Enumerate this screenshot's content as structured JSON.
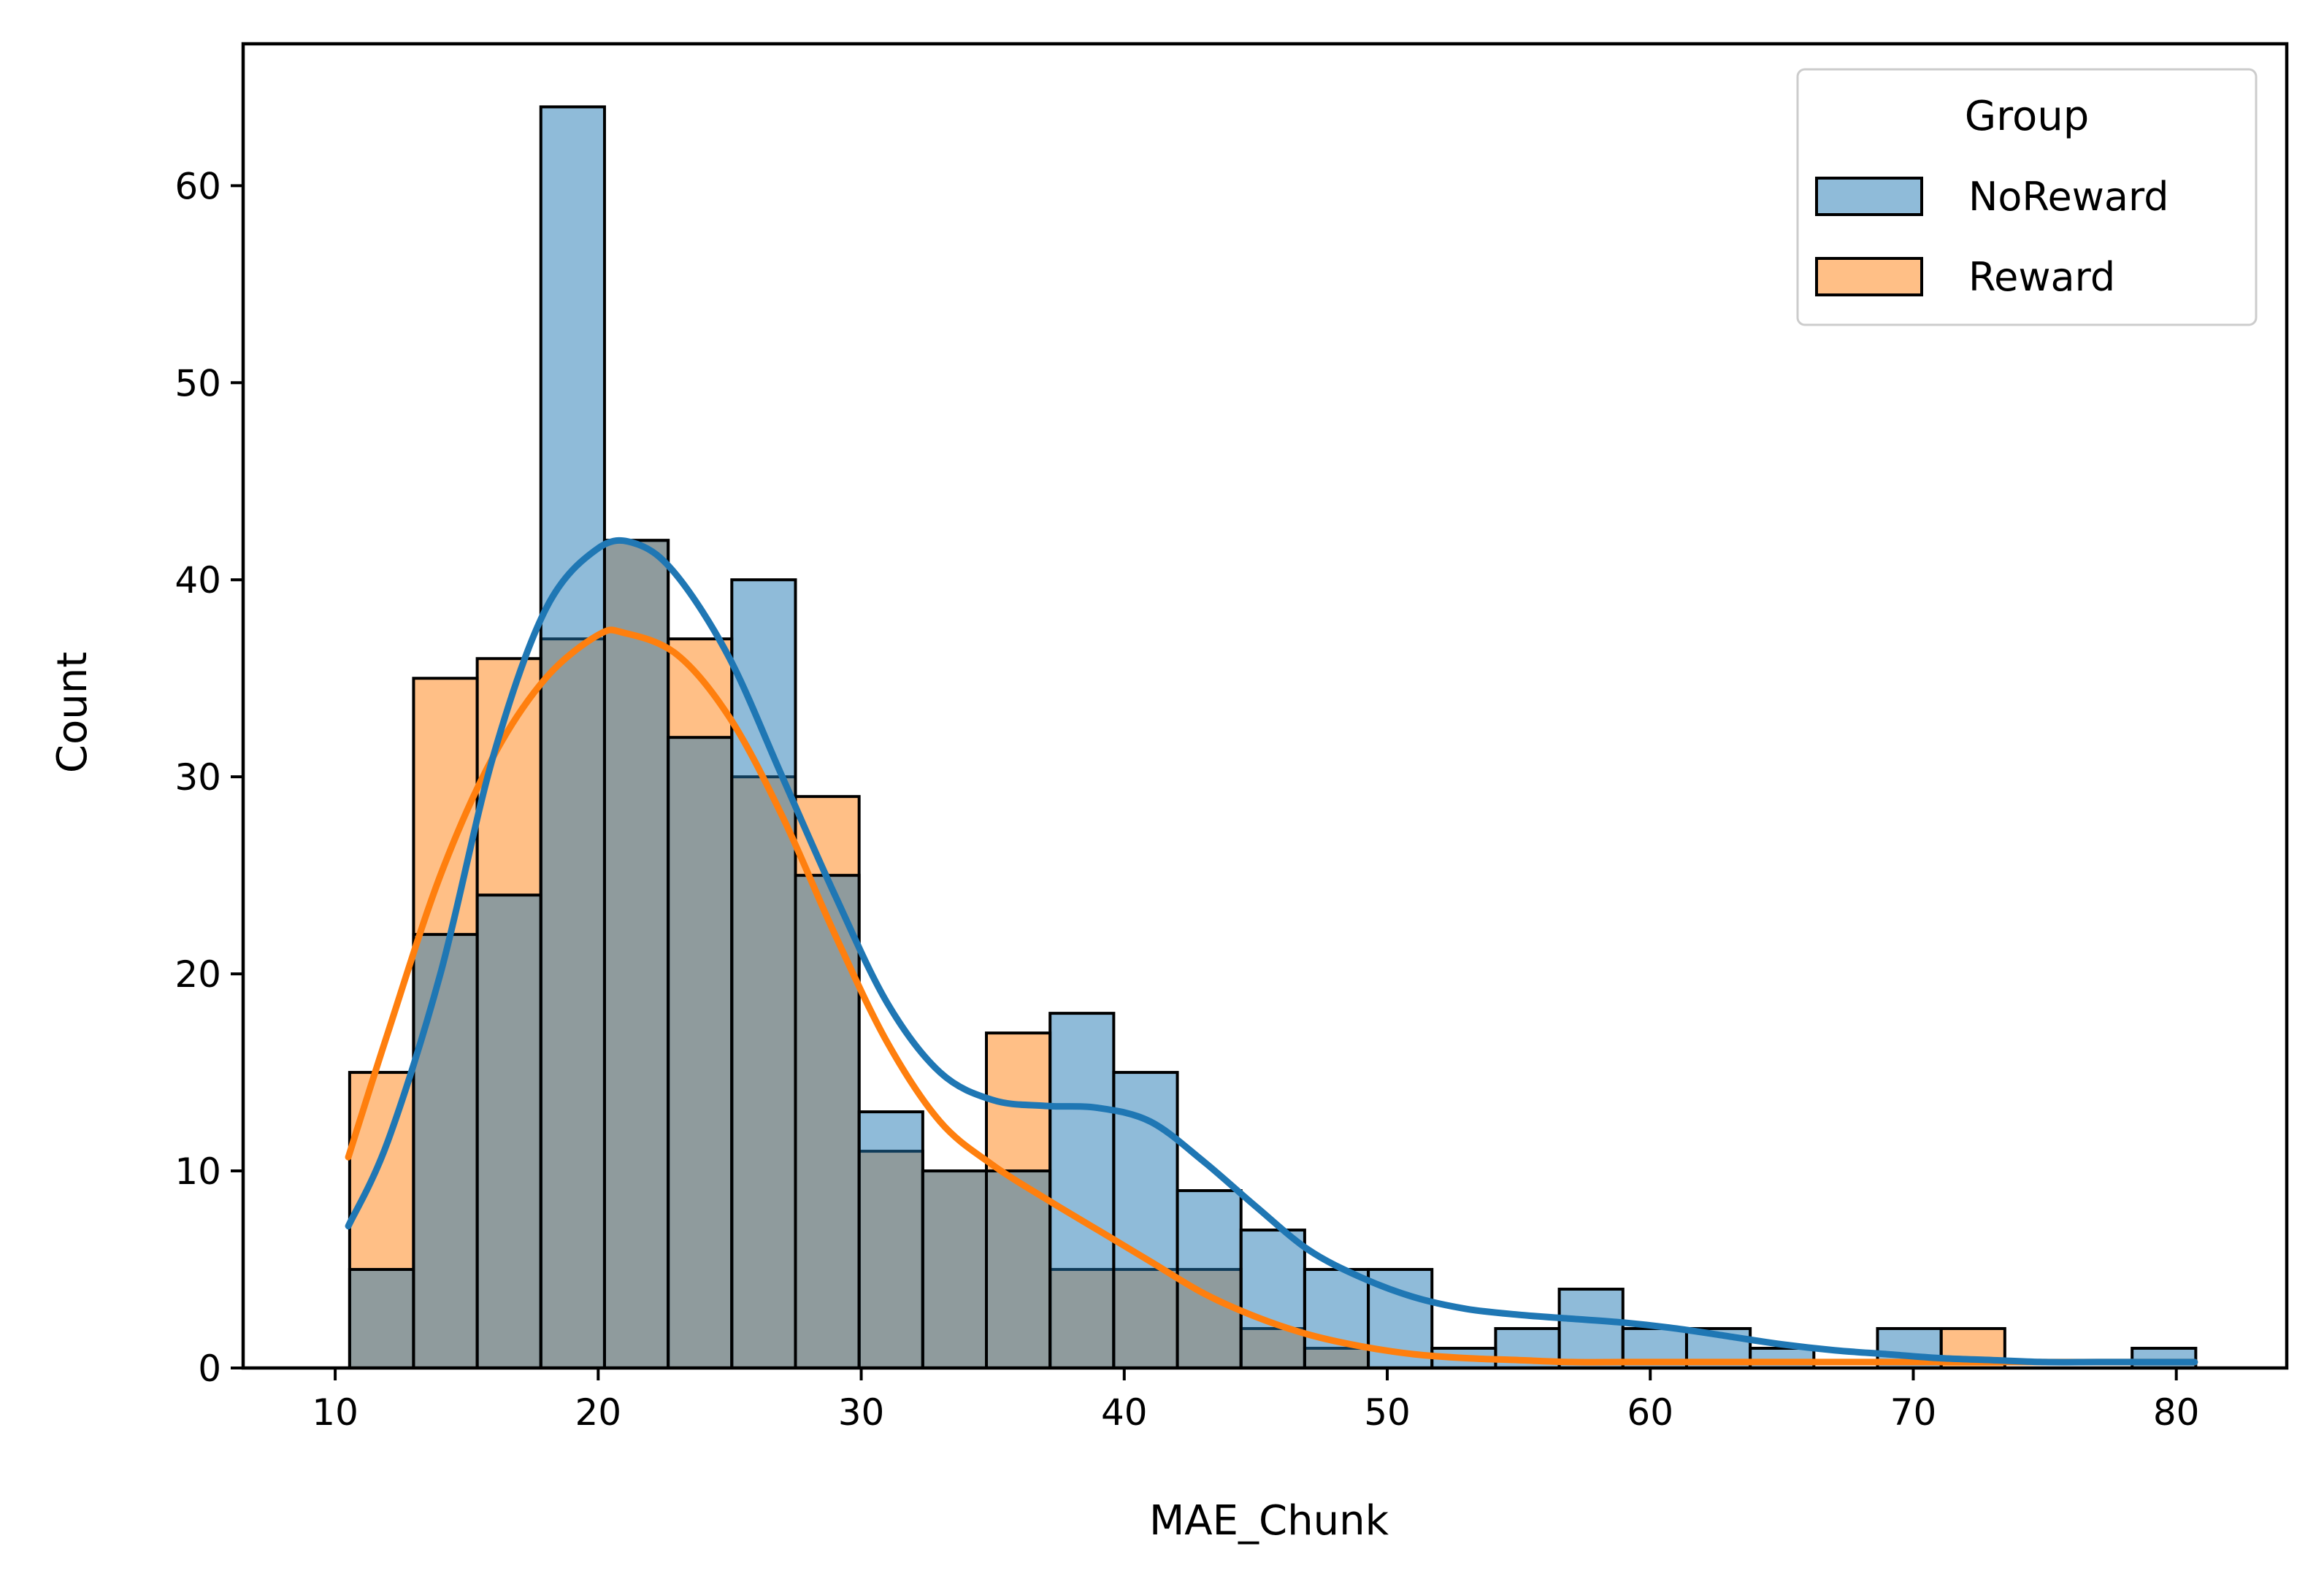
{
  "chart_data": {
    "type": "histogram",
    "xlabel": "MAE_Chunk",
    "ylabel": "Count",
    "xlim": [
      6.5,
      84.2
    ],
    "ylim": [
      0,
      67.2
    ],
    "xticks": [
      10,
      20,
      30,
      40,
      50,
      60,
      70,
      80
    ],
    "yticks": [
      0,
      10,
      20,
      30,
      40,
      50,
      60
    ],
    "bin_edges": [
      10.55,
      12.98,
      15.4,
      17.82,
      20.24,
      22.66,
      25.08,
      27.5,
      29.92,
      32.34,
      34.76,
      37.18,
      39.6,
      42.02,
      44.44,
      46.86,
      49.28,
      51.7,
      54.12,
      56.54,
      58.96,
      61.38,
      63.8,
      66.22,
      68.64,
      71.06,
      73.48,
      75.9,
      78.32,
      80.74
    ],
    "legend": {
      "title": "Group",
      "position": "upper right"
    },
    "grid": false,
    "series": [
      {
        "name": "NoReward",
        "color": "#1f77b4",
        "counts": [
          5,
          22,
          24,
          64,
          42,
          32,
          40,
          25,
          13,
          10,
          10,
          18,
          15,
          9,
          7,
          5,
          5,
          1,
          2,
          4,
          2,
          2,
          1,
          0,
          2,
          0,
          0,
          0,
          1
        ],
        "kde": [
          [
            10.5,
            7.2
          ],
          [
            12,
            11.5
          ],
          [
            14,
            20
          ],
          [
            16,
            31
          ],
          [
            18,
            38.5
          ],
          [
            20,
            41.6
          ],
          [
            21.5,
            41.8
          ],
          [
            23,
            40.2
          ],
          [
            25,
            36
          ],
          [
            27,
            30
          ],
          [
            29,
            24
          ],
          [
            31,
            18.5
          ],
          [
            33,
            15
          ],
          [
            35,
            13.6
          ],
          [
            37,
            13.3
          ],
          [
            39,
            13.2
          ],
          [
            41,
            12.5
          ],
          [
            43,
            10.5
          ],
          [
            45,
            8.2
          ],
          [
            47,
            6
          ],
          [
            49,
            4.6
          ],
          [
            51,
            3.6
          ],
          [
            53,
            3
          ],
          [
            55,
            2.7
          ],
          [
            57,
            2.5
          ],
          [
            59,
            2.3
          ],
          [
            61,
            2
          ],
          [
            63,
            1.6
          ],
          [
            65,
            1.2
          ],
          [
            67,
            0.9
          ],
          [
            69,
            0.7
          ],
          [
            71,
            0.5
          ],
          [
            73,
            0.4
          ],
          [
            75,
            0.3
          ],
          [
            77,
            0.3
          ],
          [
            79,
            0.3
          ],
          [
            80.7,
            0.3
          ]
        ]
      },
      {
        "name": "Reward",
        "color": "#ff7f0e",
        "counts": [
          15,
          35,
          36,
          37,
          42,
          37,
          30,
          29,
          11,
          10,
          17,
          5,
          5,
          5,
          2,
          1,
          0,
          0,
          0,
          0,
          0,
          0,
          0,
          0,
          0,
          2,
          0,
          0,
          0
        ],
        "kde": [
          [
            10.5,
            10.7
          ],
          [
            12,
            17
          ],
          [
            14,
            25
          ],
          [
            16,
            31
          ],
          [
            18,
            35
          ],
          [
            20,
            37.2
          ],
          [
            21,
            37.3
          ],
          [
            23,
            36.2
          ],
          [
            25,
            33
          ],
          [
            27,
            28
          ],
          [
            29,
            22
          ],
          [
            31,
            16.5
          ],
          [
            33,
            12.5
          ],
          [
            35,
            10.3
          ],
          [
            37,
            8.6
          ],
          [
            39,
            7
          ],
          [
            41,
            5.4
          ],
          [
            43,
            3.8
          ],
          [
            45,
            2.6
          ],
          [
            47,
            1.7
          ],
          [
            49,
            1.1
          ],
          [
            51,
            0.7
          ],
          [
            53,
            0.5
          ],
          [
            55,
            0.4
          ],
          [
            57,
            0.3
          ],
          [
            59,
            0.3
          ],
          [
            61,
            0.3
          ],
          [
            63,
            0.3
          ],
          [
            65,
            0.3
          ],
          [
            67,
            0.3
          ],
          [
            69,
            0.3
          ],
          [
            71,
            0.3
          ],
          [
            73,
            0.3
          ],
          [
            75,
            0.3
          ],
          [
            77,
            0.3
          ],
          [
            79,
            0.3
          ],
          [
            80.7,
            0.3
          ]
        ]
      }
    ]
  }
}
